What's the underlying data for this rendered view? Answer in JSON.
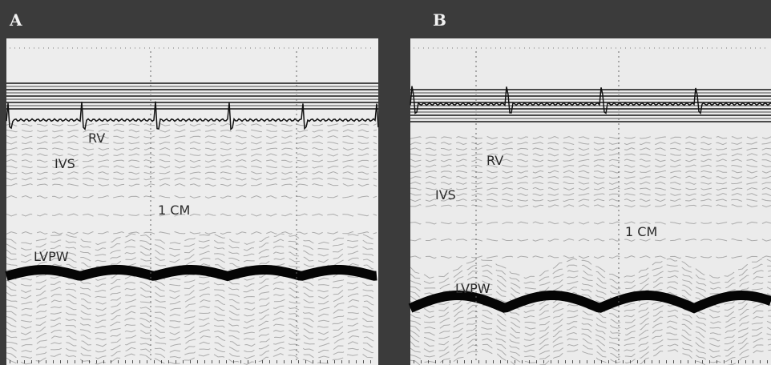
{
  "panels": [
    {
      "label": "A",
      "annotations": [
        "RV",
        "IVS",
        "1 CM",
        "LVPW"
      ]
    },
    {
      "label": "B",
      "annotations": [
        "RV",
        "IVS",
        "1 CM",
        "LVPW"
      ]
    }
  ]
}
